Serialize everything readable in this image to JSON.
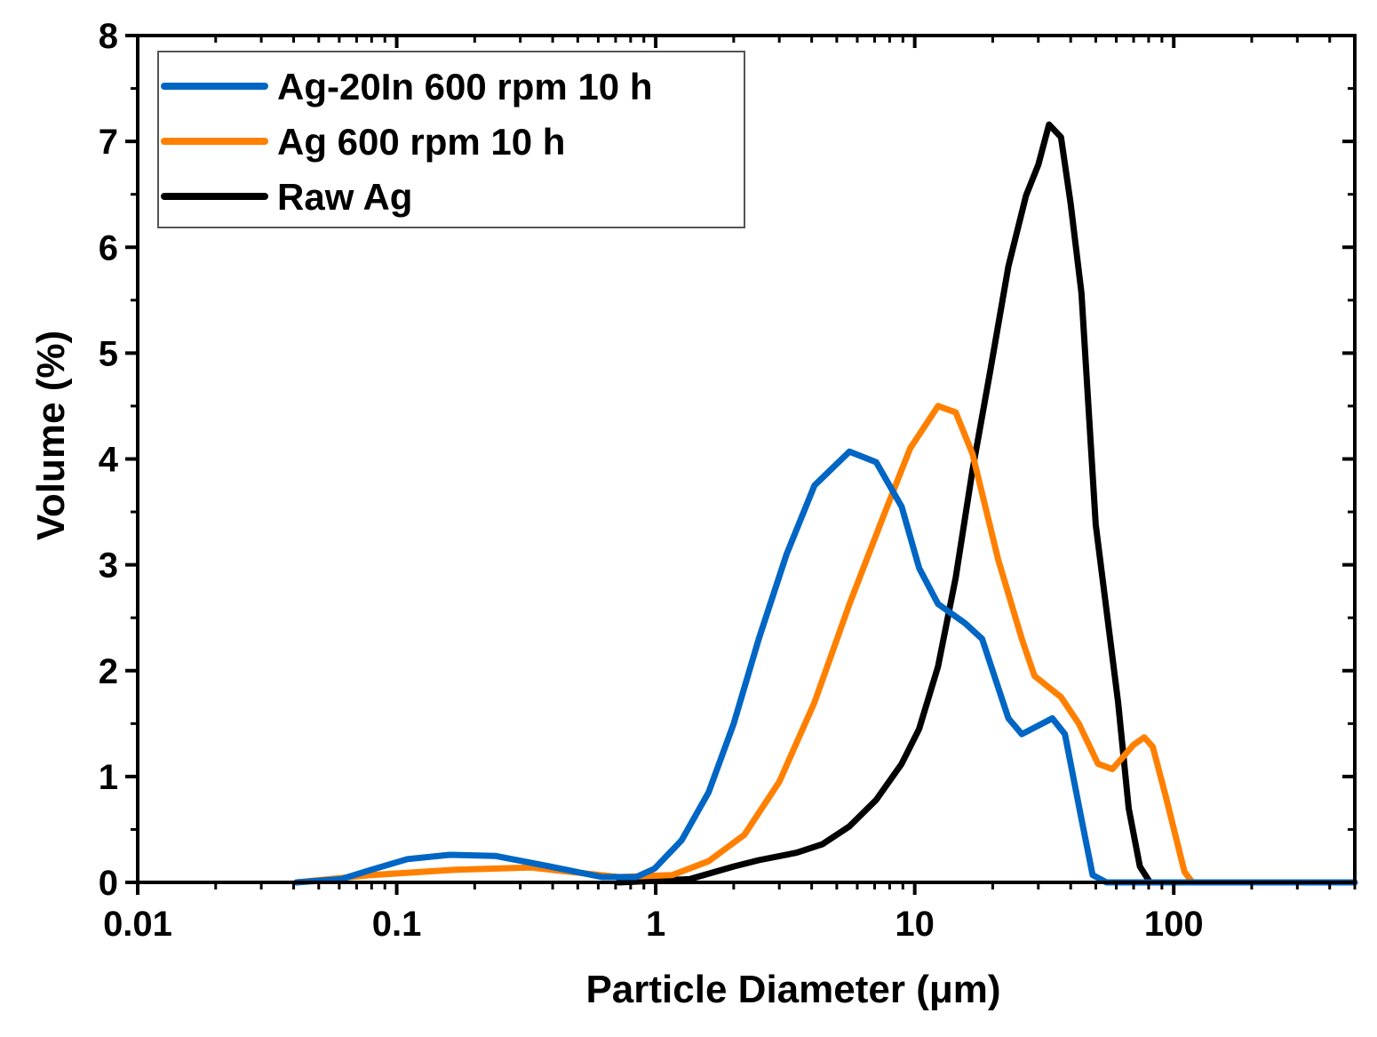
{
  "chart_data": {
    "type": "line",
    "title": "",
    "xlabel": "Particle Diameter (μm)",
    "ylabel": "Volume (%)",
    "xscale": "log",
    "xlim": [
      0.01,
      500
    ],
    "ylim": [
      0,
      8
    ],
    "xticks": [
      "0.01",
      "0.1",
      "1",
      "10",
      "100"
    ],
    "yticks": [
      "0",
      "1",
      "2",
      "3",
      "4",
      "5",
      "6",
      "7",
      "8"
    ],
    "grid": false,
    "legend_position": "top-left",
    "series": [
      {
        "name": "Ag-20In 600 rpm 10 h",
        "color": "#0066c4",
        "points": [
          [
            0.041,
            0
          ],
          [
            0.061,
            0.03
          ],
          [
            0.08,
            0.12
          ],
          [
            0.11,
            0.22
          ],
          [
            0.16,
            0.26
          ],
          [
            0.24,
            0.25
          ],
          [
            0.39,
            0.15
          ],
          [
            0.62,
            0.05
          ],
          [
            0.84,
            0.05
          ],
          [
            0.99,
            0.13
          ],
          [
            1.26,
            0.4
          ],
          [
            1.6,
            0.85
          ],
          [
            2.0,
            1.5
          ],
          [
            2.5,
            2.3
          ],
          [
            3.2,
            3.1
          ],
          [
            4.1,
            3.75
          ],
          [
            5.6,
            4.07
          ],
          [
            7.1,
            3.97
          ],
          [
            8.9,
            3.55
          ],
          [
            10.4,
            2.97
          ],
          [
            12.3,
            2.63
          ],
          [
            15.6,
            2.45
          ],
          [
            18.2,
            2.3
          ],
          [
            23,
            1.55
          ],
          [
            25.9,
            1.4
          ],
          [
            34,
            1.55
          ],
          [
            38,
            1.4
          ],
          [
            44,
            0.6
          ],
          [
            48.6,
            0.07
          ],
          [
            55,
            0
          ],
          [
            500,
            0
          ]
        ]
      },
      {
        "name": "Ag 600 rpm 10 h",
        "color": "#ff8000",
        "points": [
          [
            0.041,
            0
          ],
          [
            0.08,
            0.07
          ],
          [
            0.17,
            0.12
          ],
          [
            0.33,
            0.14
          ],
          [
            0.72,
            0.05
          ],
          [
            1.16,
            0.07
          ],
          [
            1.6,
            0.2
          ],
          [
            2.2,
            0.45
          ],
          [
            3.0,
            0.95
          ],
          [
            4.1,
            1.7
          ],
          [
            5.6,
            2.63
          ],
          [
            7.6,
            3.47
          ],
          [
            9.6,
            4.1
          ],
          [
            12.3,
            4.5
          ],
          [
            14.4,
            4.44
          ],
          [
            16.7,
            4.05
          ],
          [
            21,
            3.05
          ],
          [
            25.9,
            2.3
          ],
          [
            29,
            1.95
          ],
          [
            36.7,
            1.75
          ],
          [
            43,
            1.5
          ],
          [
            51,
            1.12
          ],
          [
            58,
            1.07
          ],
          [
            70,
            1.3
          ],
          [
            77,
            1.37
          ],
          [
            83,
            1.28
          ],
          [
            93,
            0.82
          ],
          [
            110,
            0.1
          ],
          [
            118,
            0
          ],
          [
            500,
            0
          ]
        ]
      },
      {
        "name": "Raw Ag",
        "color": "#000000",
        "points": [
          [
            0.72,
            0
          ],
          [
            1.35,
            0.03
          ],
          [
            2.0,
            0.15
          ],
          [
            2.5,
            0.21
          ],
          [
            3.5,
            0.28
          ],
          [
            4.4,
            0.36
          ],
          [
            5.6,
            0.53
          ],
          [
            7.1,
            0.78
          ],
          [
            8.9,
            1.12
          ],
          [
            10.4,
            1.45
          ],
          [
            12.3,
            2.04
          ],
          [
            14.4,
            2.88
          ],
          [
            16.7,
            3.89
          ],
          [
            19.5,
            4.81
          ],
          [
            23,
            5.82
          ],
          [
            26.9,
            6.49
          ],
          [
            30,
            6.78
          ],
          [
            33,
            7.16
          ],
          [
            36.7,
            7.04
          ],
          [
            40,
            6.41
          ],
          [
            44,
            5.57
          ],
          [
            50,
            3.38
          ],
          [
            61,
            1.7
          ],
          [
            67,
            0.7
          ],
          [
            74,
            0.15
          ],
          [
            81,
            0
          ]
        ]
      }
    ]
  }
}
